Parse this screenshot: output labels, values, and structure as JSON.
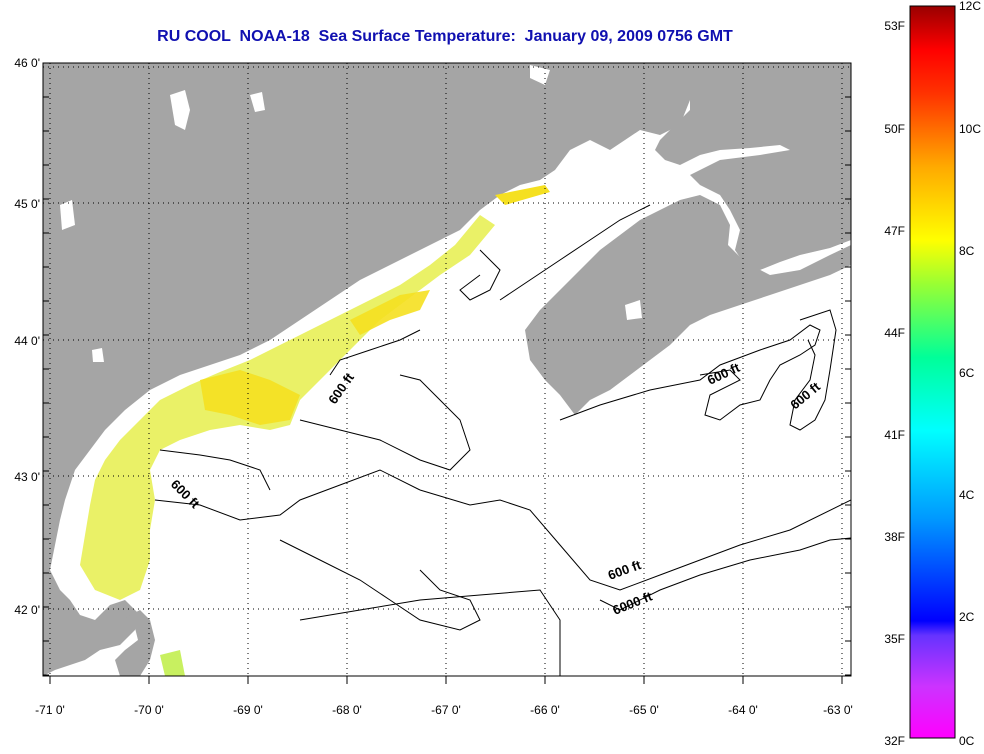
{
  "title": "RU COOL  NOAA-18  Sea Surface Temperature:  January 09, 2009 0756 GMT",
  "map": {
    "lat_labels": [
      "46 0'",
      "45 0'",
      "44 0'",
      "43 0'",
      "42 0'"
    ],
    "lon_labels": [
      "-71 0'",
      "-70 0'",
      "-69 0'",
      "-68 0'",
      "-67 0'",
      "-66 0'",
      "-65 0'",
      "-64 0'",
      "-63 0'"
    ],
    "contour_labels": [
      "600 ft",
      "600 ft",
      "600 ft",
      "600 ft",
      "600 ft",
      "6000 ft"
    ],
    "colors": {
      "land": "#a5a5a5",
      "ocean": "#ffffff",
      "contour": "#000000",
      "title": "#1010b0"
    }
  },
  "colorbar": {
    "fahrenheit_labels": [
      "53F",
      "50F",
      "47F",
      "44F",
      "41F",
      "38F",
      "35F",
      "32F"
    ],
    "celsius_labels": [
      "12C",
      "10C",
      "8C",
      "6C",
      "4C",
      "2C",
      "0C"
    ],
    "gradient": [
      "#ff00ff",
      "#9933ff",
      "#0000ff",
      "#0099ff",
      "#00ffff",
      "#00ff99",
      "#66ff33",
      "#ffff00",
      "#ffaa00",
      "#ff5500",
      "#ff0000",
      "#990000"
    ]
  }
}
